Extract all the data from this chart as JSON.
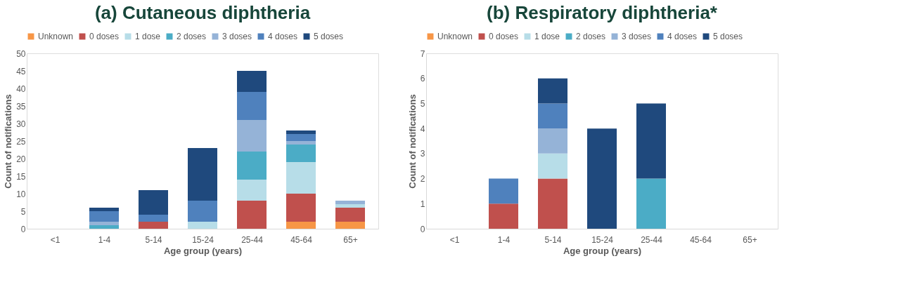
{
  "chart_data": [
    {
      "type": "bar",
      "title": "(a) Cutaneous diphtheria",
      "xlabel": "Age group (years)",
      "ylabel": "Count of notifications",
      "stacked": true,
      "legend": "top",
      "grid": false,
      "categories": [
        "<1",
        "1-4",
        "5-14",
        "15-24",
        "25-44",
        "45-64",
        "65+"
      ],
      "ylim": [
        0,
        50
      ],
      "yticks": [
        0,
        5,
        10,
        15,
        20,
        25,
        30,
        35,
        40,
        45,
        50
      ],
      "series": [
        {
          "name": "Unknown",
          "color": "#f79646",
          "values": [
            0,
            0,
            0,
            0,
            0,
            2,
            2
          ]
        },
        {
          "name": "0 doses",
          "color": "#c0504d",
          "values": [
            0,
            0,
            2,
            0,
            8,
            8,
            4
          ]
        },
        {
          "name": "1 dose",
          "color": "#b7dde8",
          "values": [
            0,
            0,
            0,
            2,
            6,
            9,
            1
          ]
        },
        {
          "name": "2 doses",
          "color": "#4bacc6",
          "values": [
            0,
            1,
            0,
            0,
            8,
            5,
            0
          ]
        },
        {
          "name": "3 doses",
          "color": "#95b3d7",
          "values": [
            0,
            1,
            0,
            0,
            9,
            1,
            1
          ]
        },
        {
          "name": "4 doses",
          "color": "#4f81bd",
          "values": [
            0,
            3,
            2,
            6,
            8,
            2,
            0
          ]
        },
        {
          "name": "5 doses",
          "color": "#1f497d",
          "values": [
            0,
            1,
            7,
            15,
            6,
            1,
            0
          ]
        }
      ]
    },
    {
      "type": "bar",
      "title": "(b) Respiratory diphtheria*",
      "xlabel": "Age group (years)",
      "ylabel": "Count of notifications",
      "stacked": true,
      "legend": "top",
      "grid": false,
      "categories": [
        "<1",
        "1-4",
        "5-14",
        "15-24",
        "25-44",
        "45-64",
        "65+"
      ],
      "ylim": [
        0,
        7
      ],
      "yticks": [
        0,
        1,
        2,
        3,
        4,
        5,
        6,
        7
      ],
      "series": [
        {
          "name": "Unknown",
          "color": "#f79646",
          "values": [
            0,
            0,
            0,
            0,
            0,
            0,
            0
          ]
        },
        {
          "name": "0 doses",
          "color": "#c0504d",
          "values": [
            0,
            1,
            2,
            0,
            0,
            0,
            0
          ]
        },
        {
          "name": "1 dose",
          "color": "#b7dde8",
          "values": [
            0,
            0,
            1,
            0,
            0,
            0,
            0
          ]
        },
        {
          "name": "2 doses",
          "color": "#4bacc6",
          "values": [
            0,
            0,
            0,
            0,
            2,
            0,
            0
          ]
        },
        {
          "name": "3 doses",
          "color": "#95b3d7",
          "values": [
            0,
            0,
            1,
            0,
            0,
            0,
            0
          ]
        },
        {
          "name": "4 doses",
          "color": "#4f81bd",
          "values": [
            0,
            1,
            1,
            0,
            0,
            0,
            0
          ]
        },
        {
          "name": "5 doses",
          "color": "#1f497d",
          "values": [
            0,
            0,
            1,
            4,
            3,
            0,
            0
          ]
        }
      ]
    }
  ]
}
